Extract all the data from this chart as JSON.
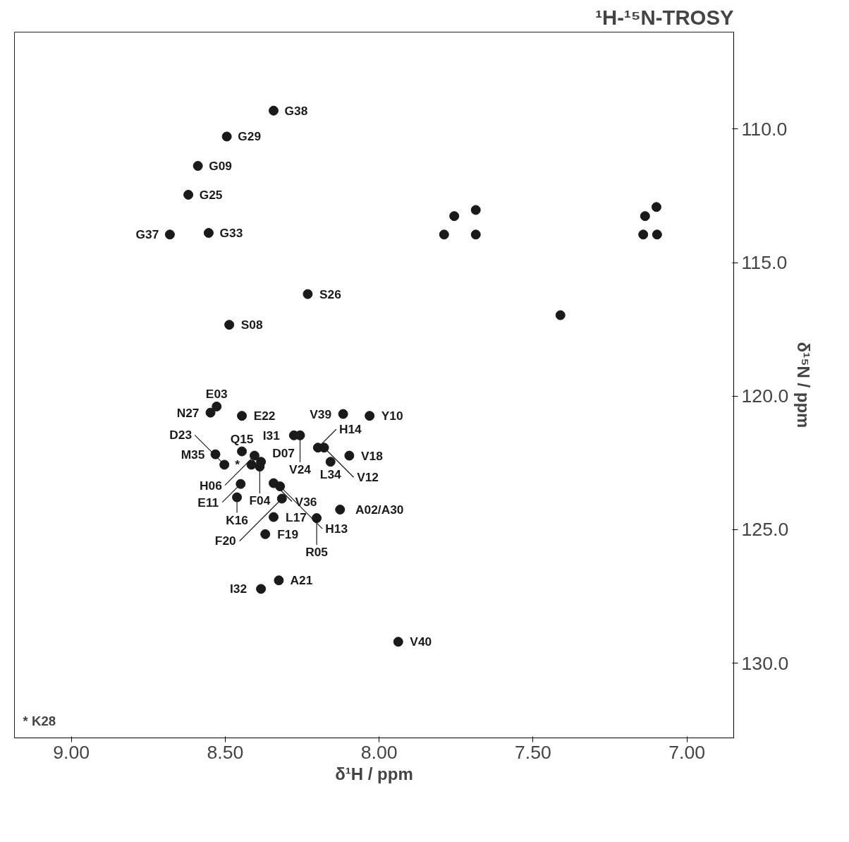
{
  "chart_data": {
    "type": "scatter",
    "title": "¹H-¹⁵N-TROSY",
    "xlabel": "δ¹H / ppm",
    "ylabel": "δ¹⁵N / ppm",
    "xlim": [
      9.185,
      6.848
    ],
    "ylim": [
      132.8,
      106.37
    ],
    "xticks": [
      {
        "value": 9.0,
        "label": "9.00"
      },
      {
        "value": 8.5,
        "label": "8.50"
      },
      {
        "value": 8.0,
        "label": "8.00"
      },
      {
        "value": 7.5,
        "label": "7.50"
      },
      {
        "value": 7.0,
        "label": "7.00"
      }
    ],
    "yticks": [
      {
        "value": 110,
        "label": "110.0"
      },
      {
        "value": 115,
        "label": "115.0"
      },
      {
        "value": 120,
        "label": "120.0"
      },
      {
        "value": 125,
        "label": "125.0"
      },
      {
        "value": 130,
        "label": "130.0"
      }
    ],
    "grid": false,
    "marker": "circle",
    "series": [
      {
        "color": "#1a1a1a",
        "x": [
          8.343,
          8.495,
          8.589,
          8.62,
          8.68,
          8.554,
          8.232,
          8.487,
          7.411,
          7.756,
          7.686,
          7.136,
          7.099,
          7.789,
          7.686,
          7.142,
          7.097,
          8.528,
          8.548,
          8.446,
          8.117,
          8.031,
          8.277,
          8.257,
          8.199,
          8.179,
          8.097,
          8.158,
          8.446,
          8.405,
          8.384,
          8.388,
          8.532,
          8.503,
          8.45,
          8.462,
          8.343,
          8.322,
          8.316,
          8.127,
          8.343,
          8.203,
          8.37,
          8.326,
          8.384,
          7.938,
          8.415
        ],
        "values": [
          109.31,
          110.28,
          111.38,
          112.46,
          113.95,
          113.89,
          116.18,
          117.33,
          116.97,
          113.26,
          113.03,
          113.26,
          112.92,
          113.95,
          113.95,
          113.95,
          113.95,
          120.39,
          120.62,
          120.74,
          120.67,
          120.74,
          121.47,
          121.47,
          121.93,
          121.93,
          122.23,
          122.46,
          122.07,
          122.23,
          122.46,
          122.64,
          122.18,
          122.57,
          123.29,
          123.79,
          123.26,
          123.38,
          123.84,
          124.25,
          124.53,
          124.57,
          125.17,
          126.9,
          127.22,
          129.2,
          122.57
        ]
      }
    ],
    "annotations": [
      {
        "text": "G38",
        "x": 8.343,
        "y": 109.31
      },
      {
        "text": "G29",
        "x": 8.495,
        "y": 110.28
      },
      {
        "text": "G09",
        "x": 8.589,
        "y": 111.38
      },
      {
        "text": "G25",
        "x": 8.62,
        "y": 112.46
      },
      {
        "text": "G37",
        "x": 8.68,
        "y": 113.95
      },
      {
        "text": "G33",
        "x": 8.554,
        "y": 113.89
      },
      {
        "text": "S26",
        "x": 8.232,
        "y": 116.18
      },
      {
        "text": "S08",
        "x": 8.487,
        "y": 117.33
      },
      {
        "text": "E03",
        "x": 8.528,
        "y": 120.39
      },
      {
        "text": "N27",
        "x": 8.548,
        "y": 120.62
      },
      {
        "text": "E22",
        "x": 8.446,
        "y": 120.74
      },
      {
        "text": "V39",
        "x": 8.117,
        "y": 120.67
      },
      {
        "text": "Y10",
        "x": 8.031,
        "y": 120.74
      },
      {
        "text": "I31",
        "x": 8.277,
        "y": 121.47
      },
      {
        "text": "V24",
        "x": 8.257,
        "y": 121.47
      },
      {
        "text": "H14",
        "x": 8.199,
        "y": 121.93
      },
      {
        "text": "V12",
        "x": 8.179,
        "y": 121.93
      },
      {
        "text": "V18",
        "x": 8.097,
        "y": 122.23
      },
      {
        "text": "L34",
        "x": 8.158,
        "y": 122.46
      },
      {
        "text": "Q15",
        "x": 8.446,
        "y": 122.07
      },
      {
        "text": "H06",
        "x": 8.405,
        "y": 122.23
      },
      {
        "text": "D07",
        "x": 8.384,
        "y": 122.46
      },
      {
        "text": "F04",
        "x": 8.388,
        "y": 122.64
      },
      {
        "text": "M35",
        "x": 8.532,
        "y": 122.18
      },
      {
        "text": "D23",
        "x": 8.503,
        "y": 122.57
      },
      {
        "text": "E11",
        "x": 8.45,
        "y": 123.29
      },
      {
        "text": "K16",
        "x": 8.462,
        "y": 123.79
      },
      {
        "text": "V36",
        "x": 8.343,
        "y": 123.26
      },
      {
        "text": "H13",
        "x": 8.322,
        "y": 123.38
      },
      {
        "text": "F20",
        "x": 8.316,
        "y": 123.84
      },
      {
        "text": "A02/A30",
        "x": 8.127,
        "y": 124.25
      },
      {
        "text": "L17",
        "x": 8.343,
        "y": 124.53
      },
      {
        "text": "R05",
        "x": 8.203,
        "y": 124.57
      },
      {
        "text": "F19",
        "x": 8.37,
        "y": 125.17
      },
      {
        "text": "A21",
        "x": 8.326,
        "y": 126.9
      },
      {
        "text": "I32",
        "x": 8.384,
        "y": 127.22
      },
      {
        "text": "V40",
        "x": 7.938,
        "y": 129.2
      },
      {
        "text": "*",
        "x": 8.415,
        "y": 122.57
      },
      "* K28"
    ]
  }
}
